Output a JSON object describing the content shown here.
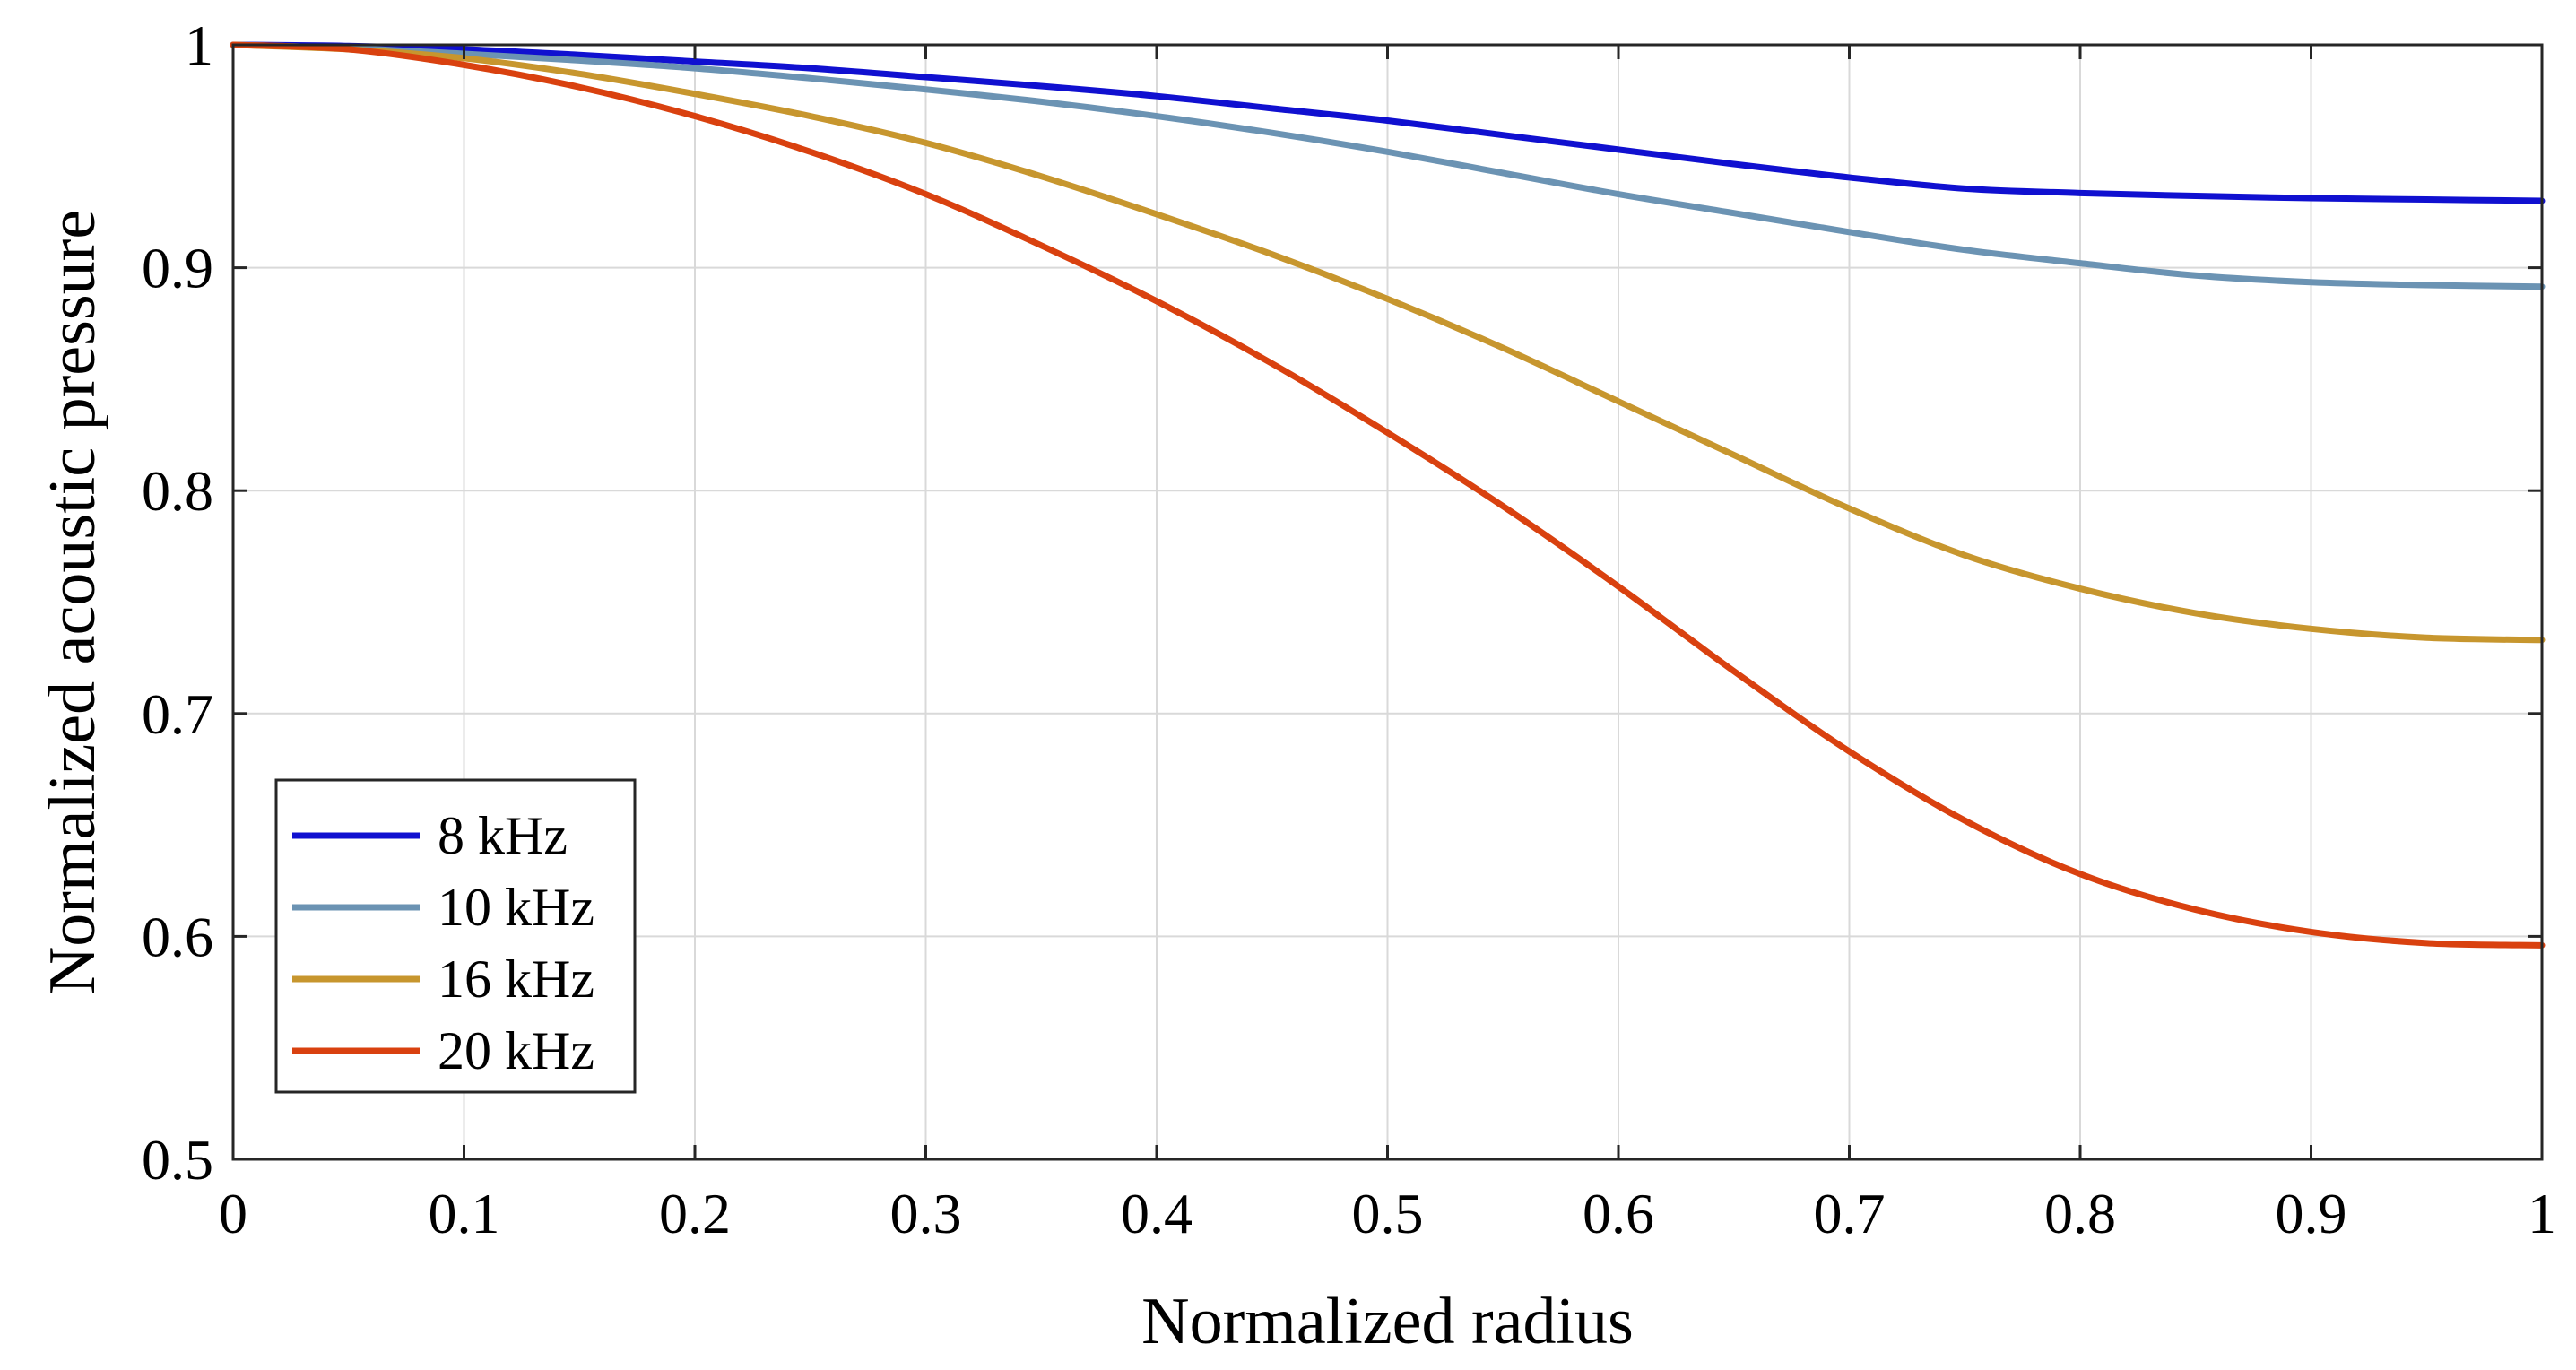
{
  "chart_data": {
    "type": "line",
    "title": "",
    "xlabel": "Normalized radius",
    "ylabel": "Normalized acoustic pressure",
    "xlim": [
      0,
      1
    ],
    "ylim": [
      0.5,
      1
    ],
    "xticks": [
      0,
      0.1,
      0.2,
      0.3,
      0.4,
      0.5,
      0.6,
      0.7,
      0.8,
      0.9,
      1
    ],
    "xtick_labels": [
      "0",
      "0.1",
      "0.2",
      "0.3",
      "0.4",
      "0.5",
      "0.6",
      "0.7",
      "0.8",
      "0.9",
      "1"
    ],
    "yticks": [
      0.5,
      0.6,
      0.7,
      0.8,
      0.9,
      1
    ],
    "ytick_labels": [
      "0.5",
      "0.6",
      "0.7",
      "0.8",
      "0.9",
      "1"
    ],
    "grid": true,
    "legend_position": "bottom-left",
    "x": [
      0,
      0.05,
      0.1,
      0.15,
      0.2,
      0.25,
      0.3,
      0.35,
      0.4,
      0.45,
      0.5,
      0.55,
      0.6,
      0.65,
      0.7,
      0.75,
      0.8,
      0.85,
      0.9,
      0.95,
      1
    ],
    "series": [
      {
        "name": "8 kHz",
        "color": "#1010d0",
        "values": [
          1.0,
          0.9995,
          0.998,
          0.9955,
          0.9925,
          0.9895,
          0.9855,
          0.9815,
          0.977,
          0.9715,
          0.966,
          0.9595,
          0.953,
          0.9465,
          0.9405,
          0.9355,
          0.9335,
          0.9322,
          0.9312,
          0.9306,
          0.93
        ]
      },
      {
        "name": "10 kHz",
        "color": "#6b93b3",
        "values": [
          1.0,
          0.9985,
          0.996,
          0.993,
          0.9895,
          0.985,
          0.98,
          0.9745,
          0.968,
          0.9605,
          0.952,
          0.9425,
          0.933,
          0.9245,
          0.916,
          0.908,
          0.902,
          0.8965,
          0.8935,
          0.8922,
          0.8915
        ]
      },
      {
        "name": "16 kHz",
        "color": "#c7962e",
        "values": [
          1.0,
          0.998,
          0.994,
          0.987,
          0.978,
          0.968,
          0.956,
          0.941,
          0.924,
          0.906,
          0.886,
          0.864,
          0.84,
          0.816,
          0.792,
          0.771,
          0.756,
          0.745,
          0.738,
          0.734,
          0.733
        ]
      },
      {
        "name": "20 kHz",
        "color": "#d9410f",
        "values": [
          1.0,
          0.998,
          0.991,
          0.981,
          0.968,
          0.952,
          0.933,
          0.91,
          0.885,
          0.857,
          0.826,
          0.793,
          0.757,
          0.719,
          0.683,
          0.652,
          0.628,
          0.612,
          0.602,
          0.597,
          0.596
        ]
      }
    ]
  }
}
